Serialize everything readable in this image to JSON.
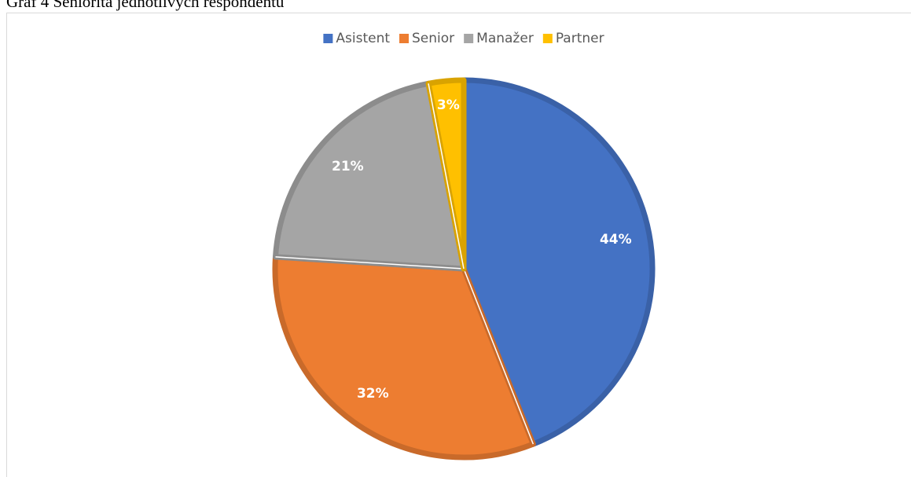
{
  "chart_data": {
    "type": "pie",
    "title": "Graf 4 Seniorita jednotlivých respondentů",
    "categories": [
      "Asistent",
      "Senior",
      "Manažer",
      "Partner"
    ],
    "values": [
      44,
      32,
      21,
      3
    ],
    "value_labels": [
      "44%",
      "32%",
      "21%",
      "3%"
    ],
    "colors": [
      "#4472c4",
      "#ed7d31",
      "#a5a5a5",
      "#ffc000"
    ],
    "legend": "top"
  }
}
